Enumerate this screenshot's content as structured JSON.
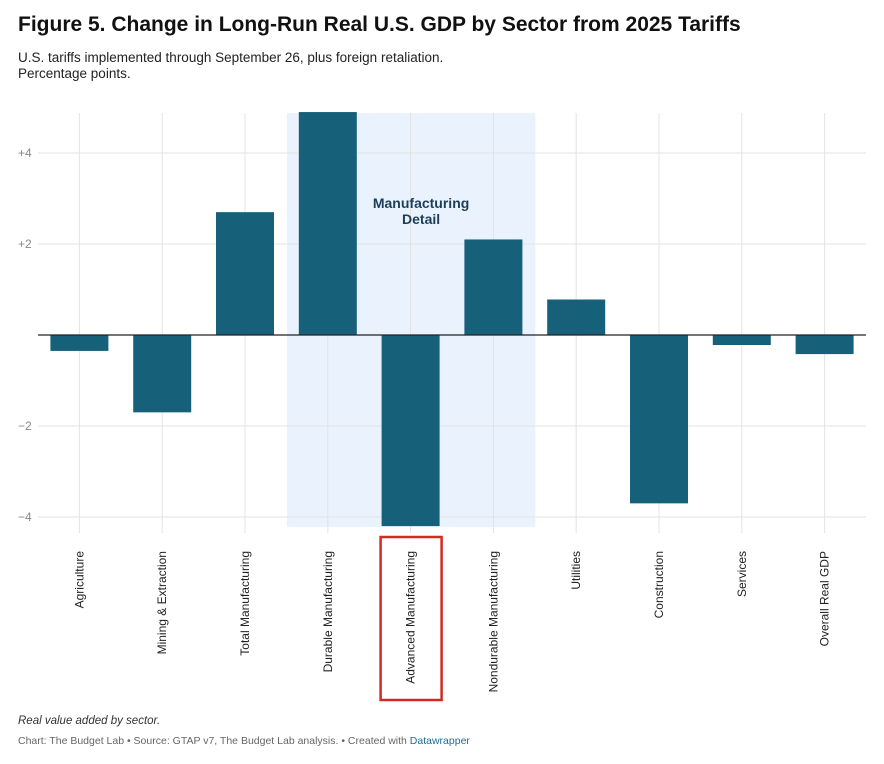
{
  "header": {
    "title": "Figure 5. Change in Long-Run Real U.S. GDP by Sector from 2025 Tariffs",
    "subtitle_line1": "U.S. tariffs implemented through September 26, plus foreign retaliation.",
    "subtitle_line2": "Percentage points."
  },
  "chart_data": {
    "type": "bar",
    "title": "Figure 5. Change in Long-Run Real U.S. GDP by Sector from 2025 Tariffs",
    "ylabel": "Percentage points",
    "ylim": [
      -4.2,
      4.8
    ],
    "yticks": [
      {
        "value": 4,
        "label": "+4"
      },
      {
        "value": 2,
        "label": "+2"
      },
      {
        "value": -2,
        "label": "−2"
      },
      {
        "value": -4,
        "label": "−4"
      }
    ],
    "categories": [
      "Agriculture",
      "Mining & Extraction",
      "Total Manufacturing",
      "Durable Manufacturing",
      "Advanced Manufacturing",
      "Nondurable Manufacturing",
      "Utilities",
      "Construction",
      "Services",
      "Overall Real GDP"
    ],
    "values": [
      -0.35,
      -1.7,
      2.7,
      4.9,
      -4.2,
      2.1,
      0.78,
      -3.7,
      -0.22,
      -0.42
    ],
    "bar_color": "#17607a",
    "highlight_band": {
      "label_line1": "Manufacturing",
      "label_line2": "Detail",
      "from_category": "Durable Manufacturing",
      "to_category": "Nondurable Manufacturing",
      "color": "#eaf3fd"
    },
    "boxed_category": "Advanced Manufacturing",
    "box_color": "#d42a24"
  },
  "footer": {
    "note": "Real value added by sector.",
    "credit_prefix": "Chart: The Budget Lab • Source: GTAP v7, The Budget Lab analysis. • Created with ",
    "credit_link": "Datawrapper"
  }
}
